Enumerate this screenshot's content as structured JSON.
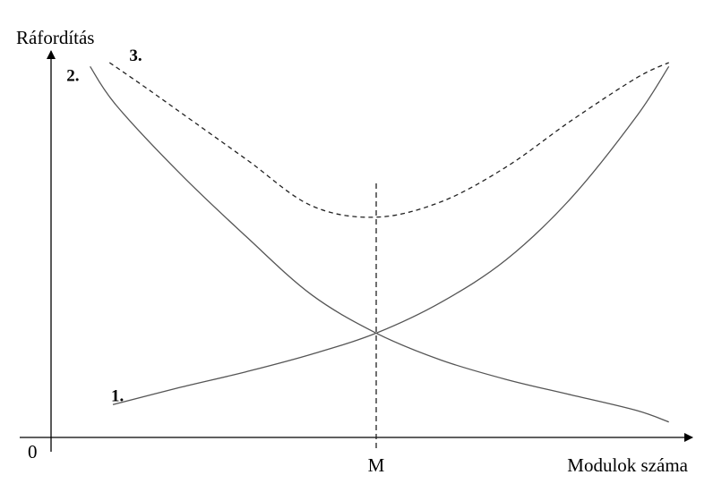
{
  "chart_data": {
    "type": "line",
    "title": "",
    "xlabel": "Modulok száma",
    "ylabel": "Ráfordítás",
    "origin_label": "0",
    "x_ticks": [
      {
        "x": 0.5,
        "label": "M",
        "vertical_line": "dashed"
      }
    ],
    "xlim": [
      0,
      1
    ],
    "ylim": [
      0,
      1
    ],
    "grid": false,
    "legend": "none",
    "series": [
      {
        "label": "1.",
        "style": "solid",
        "color": "#555555",
        "x": [
          0.095,
          0.2,
          0.3,
          0.4,
          0.5,
          0.6,
          0.7,
          0.8,
          0.9,
          0.95
        ],
        "y": [
          0.085,
          0.13,
          0.17,
          0.215,
          0.27,
          0.35,
          0.46,
          0.62,
          0.83,
          0.96
        ]
      },
      {
        "label": "2.",
        "style": "solid",
        "color": "#555555",
        "x": [
          0.06,
          0.1,
          0.2,
          0.3,
          0.4,
          0.5,
          0.6,
          0.7,
          0.8,
          0.9,
          0.95
        ],
        "y": [
          0.96,
          0.86,
          0.68,
          0.52,
          0.37,
          0.27,
          0.2,
          0.15,
          0.11,
          0.07,
          0.04
        ]
      },
      {
        "label": "3.",
        "style": "dashed",
        "color": "#222222",
        "x": [
          0.09,
          0.15,
          0.2,
          0.3,
          0.4,
          0.5,
          0.6,
          0.7,
          0.8,
          0.9,
          0.95
        ],
        "y": [
          0.97,
          0.9,
          0.84,
          0.72,
          0.6,
          0.57,
          0.61,
          0.7,
          0.82,
          0.93,
          0.97
        ]
      }
    ]
  }
}
